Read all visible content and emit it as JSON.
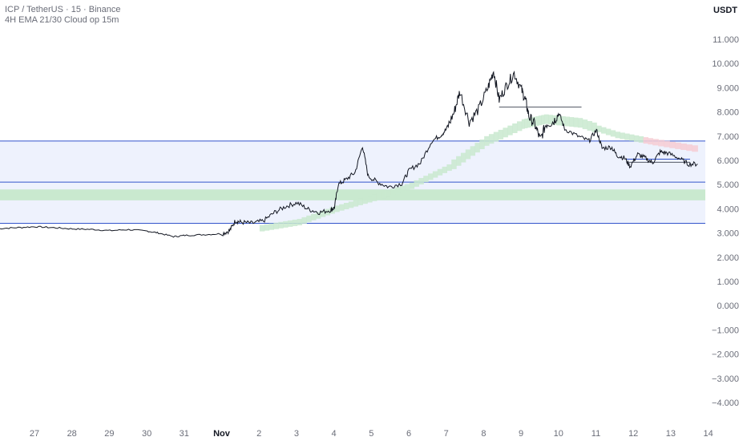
{
  "legend": {
    "title": "ICP / TetherUS · 15 · Binance",
    "indicator": "4H EMA 21/30 Cloud op 15m"
  },
  "currency": "USDT",
  "colors": {
    "price_line": "#131722",
    "zone_fill": "#eef2fd",
    "zone_border": "#3355cc",
    "cloud_green": "#c9e9cf",
    "cloud_red": "#f6cdd3",
    "axis_text": "#6a6d78"
  },
  "chart_data": {
    "type": "line",
    "ylim": [
      -4.5,
      11.5
    ],
    "y_ticks": [
      {
        "value": 11,
        "label": "11.000"
      },
      {
        "value": 10,
        "label": "10.000"
      },
      {
        "value": 9,
        "label": "9.000"
      },
      {
        "value": 8,
        "label": "8.000"
      },
      {
        "value": 7,
        "label": "7.000"
      },
      {
        "value": 6,
        "label": "6.000"
      },
      {
        "value": 5,
        "label": "5.000"
      },
      {
        "value": 4,
        "label": "4.000"
      },
      {
        "value": 3,
        "label": "3.000"
      },
      {
        "value": 2,
        "label": "2.000"
      },
      {
        "value": 1,
        "label": "1.000"
      },
      {
        "value": 0,
        "label": "0.000"
      },
      {
        "value": -1,
        "label": "−1.000"
      },
      {
        "value": -2,
        "label": "−2.000"
      },
      {
        "value": -3,
        "label": "−3.000"
      },
      {
        "value": -4,
        "label": "−4.000"
      }
    ],
    "x_ticks": [
      {
        "label": "27",
        "bold": false
      },
      {
        "label": "28",
        "bold": false
      },
      {
        "label": "29",
        "bold": false
      },
      {
        "label": "30",
        "bold": false
      },
      {
        "label": "31",
        "bold": false
      },
      {
        "label": "Nov",
        "bold": true
      },
      {
        "label": "2",
        "bold": false
      },
      {
        "label": "3",
        "bold": false
      },
      {
        "label": "4",
        "bold": false
      },
      {
        "label": "5",
        "bold": false
      },
      {
        "label": "6",
        "bold": false
      },
      {
        "label": "7",
        "bold": false
      },
      {
        "label": "8",
        "bold": false
      },
      {
        "label": "9",
        "bold": false
      },
      {
        "label": "10",
        "bold": false
      },
      {
        "label": "11",
        "bold": false
      },
      {
        "label": "12",
        "bold": false
      },
      {
        "label": "13",
        "bold": false
      },
      {
        "label": "14",
        "bold": false
      }
    ],
    "x_range_days": [
      0,
      18.8
    ],
    "series": [
      {
        "points": [
          [
            0,
            3.18
          ],
          [
            0.5,
            3.22
          ],
          [
            1.0,
            3.26
          ],
          [
            1.5,
            3.22
          ],
          [
            2.0,
            3.17
          ],
          [
            2.5,
            3.15
          ],
          [
            3.0,
            3.1
          ],
          [
            3.5,
            3.14
          ],
          [
            4.0,
            3.08
          ],
          [
            4.3,
            3.0
          ],
          [
            4.7,
            2.85
          ],
          [
            5.0,
            2.9
          ],
          [
            5.5,
            2.93
          ],
          [
            6.0,
            2.97
          ],
          [
            6.2,
            3.1
          ],
          [
            6.35,
            3.5
          ],
          [
            6.5,
            3.45
          ],
          [
            6.8,
            3.4
          ],
          [
            7.1,
            3.5
          ],
          [
            7.4,
            3.85
          ],
          [
            7.7,
            4.1
          ],
          [
            8.0,
            4.25
          ],
          [
            8.3,
            3.98
          ],
          [
            8.6,
            3.85
          ],
          [
            8.9,
            3.95
          ],
          [
            9.0,
            4.05
          ],
          [
            9.1,
            5.0
          ],
          [
            9.3,
            5.2
          ],
          [
            9.55,
            5.5
          ],
          [
            9.75,
            6.6
          ],
          [
            9.9,
            5.35
          ],
          [
            10.15,
            5.1
          ],
          [
            10.45,
            4.9
          ],
          [
            10.8,
            5.05
          ],
          [
            11.0,
            5.6
          ],
          [
            11.3,
            5.9
          ],
          [
            11.6,
            6.8
          ],
          [
            11.85,
            7.05
          ],
          [
            12.0,
            7.3
          ],
          [
            12.2,
            8.0
          ],
          [
            12.35,
            8.85
          ],
          [
            12.6,
            7.6
          ],
          [
            12.85,
            8.1
          ],
          [
            13.1,
            9.0
          ],
          [
            13.25,
            9.7
          ],
          [
            13.4,
            8.5
          ],
          [
            13.6,
            9.1
          ],
          [
            13.8,
            9.6
          ],
          [
            14.0,
            8.9
          ],
          [
            14.1,
            8.5
          ],
          [
            14.2,
            7.8
          ],
          [
            14.35,
            7.5
          ],
          [
            14.5,
            6.85
          ],
          [
            14.65,
            7.5
          ],
          [
            14.85,
            7.6
          ],
          [
            15.0,
            7.95
          ],
          [
            15.15,
            7.3
          ],
          [
            15.5,
            7.0
          ],
          [
            15.8,
            6.8
          ],
          [
            16.0,
            7.25
          ],
          [
            16.15,
            6.5
          ],
          [
            16.4,
            6.55
          ],
          [
            16.55,
            6.2
          ],
          [
            16.75,
            6.1
          ],
          [
            16.9,
            5.75
          ],
          [
            17.1,
            6.25
          ],
          [
            17.3,
            6.1
          ],
          [
            17.5,
            5.9
          ],
          [
            17.7,
            6.35
          ],
          [
            17.9,
            6.3
          ],
          [
            18.2,
            6.1
          ],
          [
            18.45,
            5.85
          ],
          [
            18.7,
            5.85
          ]
        ]
      }
    ],
    "zones": [
      {
        "from": 3.4,
        "to": 6.8
      },
      {
        "from": 5.1,
        "to": 5.1
      }
    ],
    "green_band": {
      "from": 4.35,
      "to": 4.8
    },
    "levels": [
      {
        "value": 8.2,
        "x_start": 13.4,
        "x_end": 15.6
      },
      {
        "value": 6.05,
        "x_start": 16.8,
        "x_end": 18.5
      },
      {
        "value": 5.92,
        "x_start": 16.8,
        "x_end": 18.5
      }
    ],
    "cloud": [
      [
        7.0,
        3.2
      ],
      [
        8.0,
        3.45
      ],
      [
        9.0,
        4.0
      ],
      [
        10.0,
        4.45
      ],
      [
        11.0,
        4.95
      ],
      [
        12.0,
        5.7
      ],
      [
        13.0,
        6.8
      ],
      [
        14.0,
        7.5
      ],
      [
        14.6,
        7.7
      ],
      [
        15.5,
        7.55
      ],
      [
        16.5,
        7.05
      ],
      [
        17.5,
        6.75
      ],
      [
        18.7,
        6.45
      ]
    ]
  }
}
